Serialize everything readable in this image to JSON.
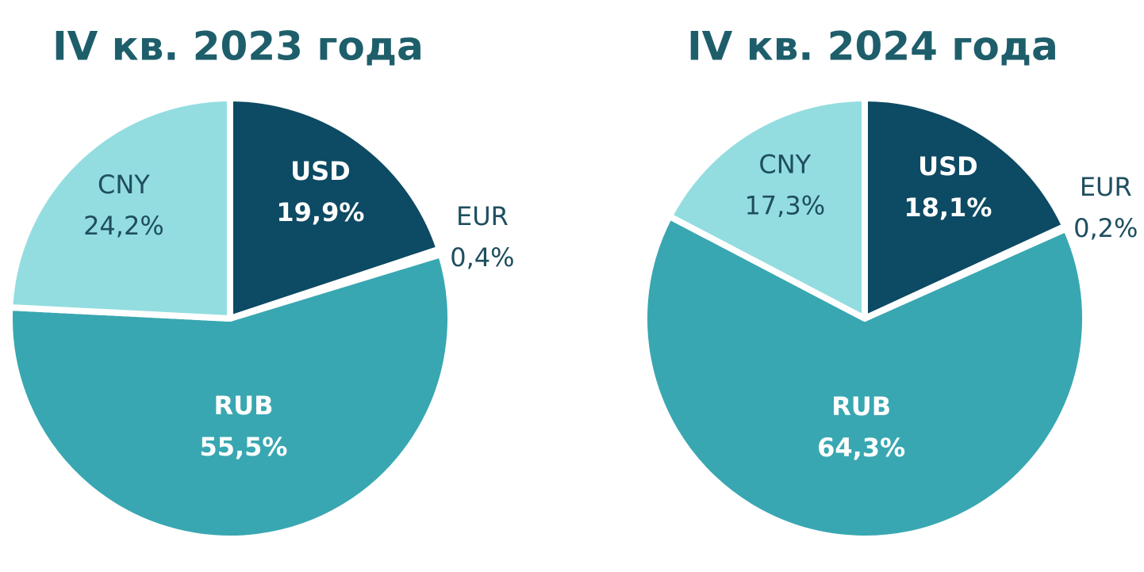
{
  "chart_data": [
    {
      "type": "pie",
      "title": "IV кв. 2023 года",
      "categories": [
        "USD",
        "EUR",
        "RUB",
        "CNY"
      ],
      "values": [
        19.9,
        0.4,
        55.5,
        24.2
      ],
      "value_labels": [
        "19,9%",
        "0,4%",
        "55,5%",
        "24,2%"
      ],
      "colors": [
        "#0d4a63",
        "#b5e6e9",
        "#38a7b1",
        "#93dde0"
      ]
    },
    {
      "type": "pie",
      "title": "IV кв. 2024 года",
      "categories": [
        "USD",
        "EUR",
        "RUB",
        "CNY"
      ],
      "values": [
        18.1,
        0.2,
        64.3,
        17.3
      ],
      "value_labels": [
        "18,1%",
        "0,2%",
        "64,3%",
        "17,3%"
      ],
      "colors": [
        "#0d4a63",
        "#b5e6e9",
        "#38a7b1",
        "#93dde0"
      ]
    }
  ]
}
